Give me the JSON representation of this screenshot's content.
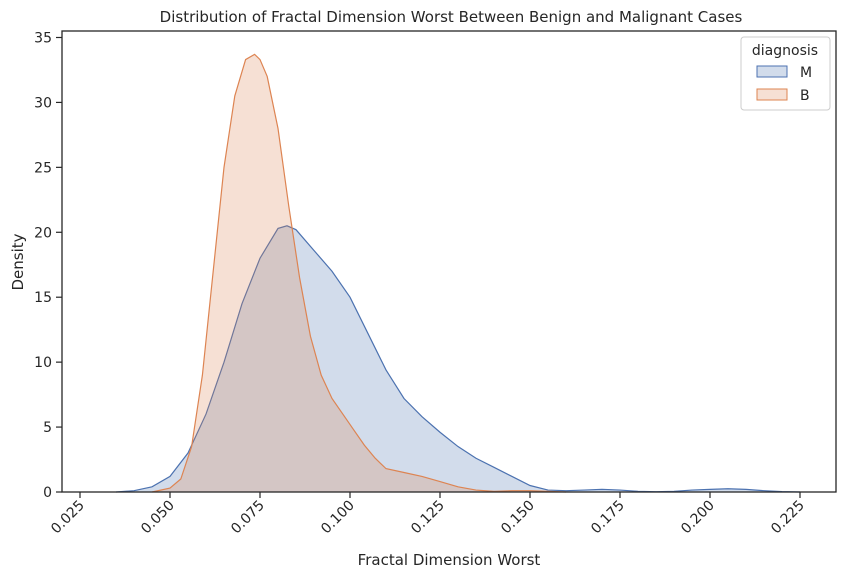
{
  "chart_data": {
    "type": "area",
    "title": "Distribution of Fractal Dimension Worst Between Benign and Malignant Cases",
    "xlabel": "Fractal Dimension Worst",
    "ylabel": "Density",
    "xlim": [
      0.02,
      0.235
    ],
    "ylim": [
      0,
      35.5
    ],
    "xticks": [
      0.025,
      0.05,
      0.075,
      0.1,
      0.125,
      0.15,
      0.175,
      0.2,
      0.225
    ],
    "xtick_labels": [
      "0.025",
      "0.050",
      "0.075",
      "0.100",
      "0.125",
      "0.150",
      "0.175",
      "0.200",
      "0.225"
    ],
    "yticks": [
      0,
      5,
      10,
      15,
      20,
      25,
      30,
      35
    ],
    "ytick_labels": [
      "0",
      "5",
      "10",
      "15",
      "20",
      "25",
      "30",
      "35"
    ],
    "grid": false,
    "legend": {
      "title": "diagnosis",
      "placement": "top-right"
    },
    "series": [
      {
        "name": "M",
        "color": "#4c72b0",
        "fill": "#4c72b0",
        "fill_opacity": 0.25,
        "x": [
          0.035,
          0.04,
          0.045,
          0.05,
          0.055,
          0.06,
          0.065,
          0.07,
          0.075,
          0.08,
          0.0825,
          0.085,
          0.09,
          0.095,
          0.1,
          0.105,
          0.11,
          0.115,
          0.12,
          0.125,
          0.13,
          0.135,
          0.14,
          0.145,
          0.15,
          0.155,
          0.16,
          0.165,
          0.17,
          0.175,
          0.18,
          0.185,
          0.19,
          0.195,
          0.2,
          0.205,
          0.21,
          0.215,
          0.22,
          0.225
        ],
        "y": [
          0.0,
          0.1,
          0.4,
          1.2,
          3.0,
          6.0,
          10.0,
          14.5,
          18.0,
          20.3,
          20.5,
          20.2,
          18.6,
          17.0,
          15.0,
          12.2,
          9.4,
          7.2,
          5.8,
          4.6,
          3.5,
          2.6,
          1.9,
          1.2,
          0.5,
          0.15,
          0.1,
          0.15,
          0.2,
          0.15,
          0.05,
          0.02,
          0.05,
          0.15,
          0.2,
          0.25,
          0.2,
          0.1,
          0.03,
          0.0
        ]
      },
      {
        "name": "B",
        "color": "#dd8452",
        "fill": "#dd8452",
        "fill_opacity": 0.25,
        "x": [
          0.045,
          0.05,
          0.053,
          0.056,
          0.059,
          0.062,
          0.065,
          0.068,
          0.071,
          0.0735,
          0.075,
          0.077,
          0.08,
          0.083,
          0.086,
          0.089,
          0.092,
          0.095,
          0.098,
          0.101,
          0.104,
          0.107,
          0.11,
          0.115,
          0.12,
          0.125,
          0.13,
          0.135,
          0.14,
          0.145,
          0.15,
          0.155,
          0.16
        ],
        "y": [
          0.0,
          0.3,
          1.0,
          3.5,
          9.0,
          17.0,
          25.0,
          30.5,
          33.3,
          33.7,
          33.3,
          32.0,
          28.0,
          22.0,
          16.5,
          12.0,
          9.0,
          7.2,
          6.0,
          4.8,
          3.6,
          2.6,
          1.8,
          1.5,
          1.2,
          0.8,
          0.4,
          0.15,
          0.05,
          0.1,
          0.1,
          0.05,
          0.0
        ]
      }
    ]
  }
}
